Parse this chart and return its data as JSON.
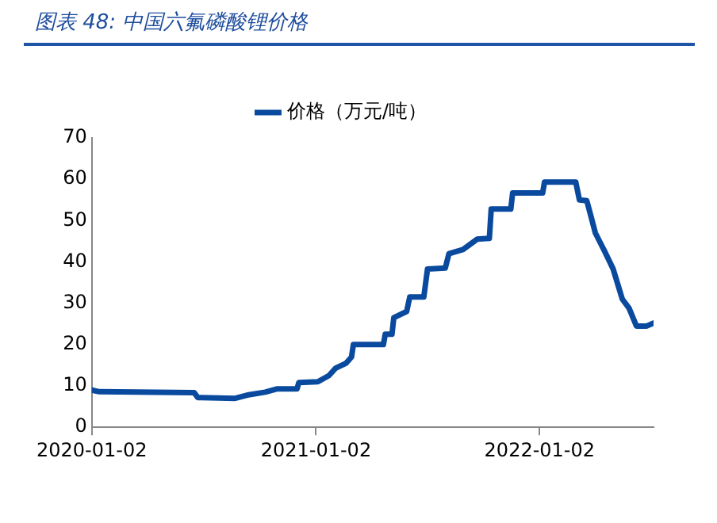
{
  "chart_data": {
    "type": "line",
    "title": "图表 48:  中国六氟磷酸锂价格",
    "x": [
      "2020-01-02",
      "2020-01-14",
      "2020-06-17",
      "2020-06-23",
      "2020-08-23",
      "2020-09-12",
      "2020-10-11",
      "2020-10-31",
      "2020-12-02",
      "2020-12-05",
      "2021-01-05",
      "2021-01-23",
      "2021-02-03",
      "2021-02-20",
      "2021-03-01",
      "2021-03-04",
      "2021-04-22",
      "2021-04-25",
      "2021-05-06",
      "2021-05-09",
      "2021-05-30",
      "2021-06-04",
      "2021-06-27",
      "2021-07-03",
      "2021-08-01",
      "2021-08-07",
      "2021-08-30",
      "2021-09-22",
      "2021-10-12",
      "2021-10-15",
      "2021-11-16",
      "2021-11-19",
      "2022-01-07",
      "2022-01-10",
      "2022-03-02",
      "2022-03-08",
      "2022-03-20",
      "2022-03-26",
      "2022-04-03",
      "2022-04-18",
      "2022-05-02",
      "2022-05-17",
      "2022-05-28",
      "2022-06-09",
      "2022-06-26",
      "2022-07-07"
    ],
    "series": [
      {
        "name": "价格（万元/吨）",
        "color": "#0a4a9e",
        "values": [
          9.0,
          8.6,
          8.4,
          7.2,
          7.0,
          7.8,
          8.5,
          9.3,
          9.3,
          10.8,
          11.0,
          12.5,
          14.3,
          15.5,
          17,
          20,
          20,
          22.5,
          22.5,
          26.5,
          28,
          31.5,
          31.5,
          38.3,
          38.5,
          42,
          43,
          45.5,
          45.7,
          52.8,
          52.8,
          56.7,
          56.7,
          59.3,
          59.3,
          55,
          54.8,
          51.5,
          47,
          42.6,
          38.3,
          31,
          28.8,
          24.5,
          24.5,
          25.2
        ]
      }
    ],
    "xlim": [
      "2020-01-02",
      "2022-07-07"
    ],
    "xticks": [
      "2020-01-02",
      "2021-01-02",
      "2022-01-02"
    ],
    "ylim": [
      0,
      70
    ],
    "yticks": [
      0,
      10,
      20,
      30,
      40,
      50,
      60,
      70
    ],
    "grid": false,
    "legend": "top",
    "marker": "none",
    "line_style": "solid"
  }
}
